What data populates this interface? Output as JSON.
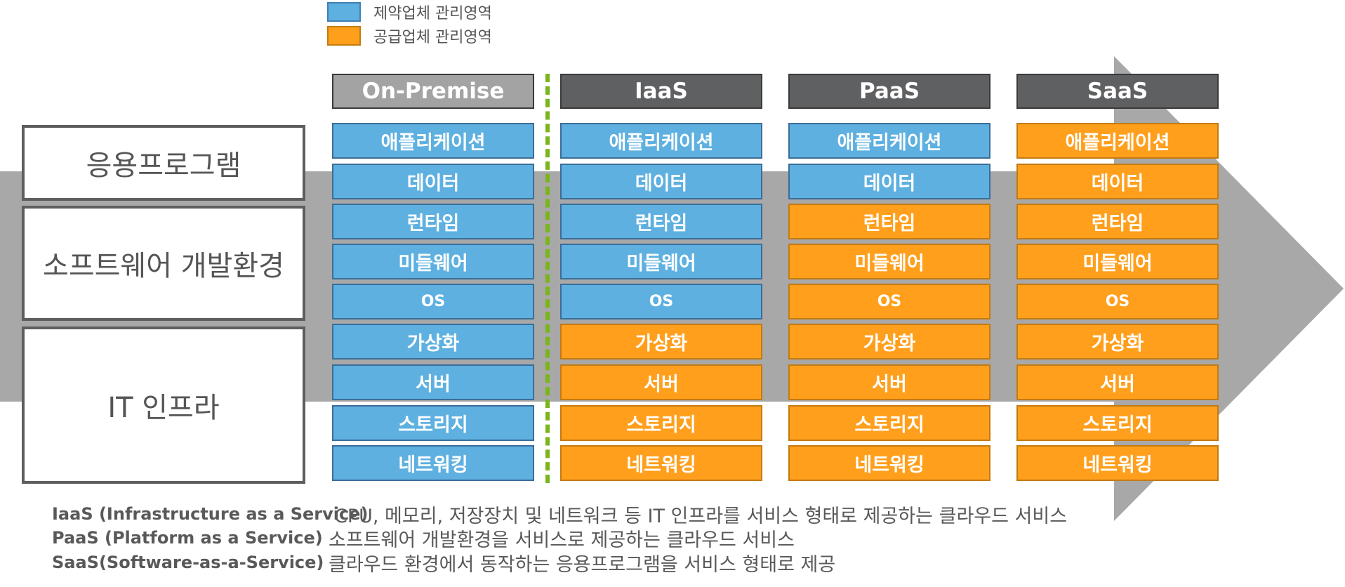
{
  "colors": {
    "client_managed": "#5eb0e0",
    "vendor_managed": "#ff9f1c",
    "header_default": "#5f6062",
    "header_on_premise": "#a3a3a3",
    "arrow": "#a8a8a8",
    "divider": "#7ab51d"
  },
  "legend": [
    {
      "label": "제약업체 관리영역",
      "color": "#5eb0e0"
    },
    {
      "label": "공급업체 관리영역",
      "color": "#ff9f1c"
    }
  ],
  "layer_groups": [
    "응용프로그램",
    "소프트웨어 개발환경",
    "IT 인프라"
  ],
  "columns": [
    {
      "name": "On-Premise",
      "vendor_managed_from_top": 0
    },
    {
      "name": "IaaS",
      "vendor_managed_from_top": 5
    },
    {
      "name": "PaaS",
      "vendor_managed_from_top": 2
    },
    {
      "name": "SaaS",
      "vendor_managed_from_top": 0,
      "all_vendor": true
    }
  ],
  "layers": [
    "애플리케이션",
    "데이터",
    "런타임",
    "미들웨어",
    "OS",
    "가상화",
    "서버",
    "스토리지",
    "네트워킹"
  ],
  "definitions": [
    {
      "term": "IaaS (Infrastructure as a Service)",
      "desc": "CPU, 메모리, 저장장치 및 네트워크 등 IT 인프라를 서비스 형태로 제공하는 클라우드 서비스"
    },
    {
      "term": "PaaS (Platform as a Service)",
      "desc": "소프트웨어 개발환경을 서비스로 제공하는 클라우드 서비스"
    },
    {
      "term": "SaaS(Software-as-a-Service)",
      "desc": "클라우드 환경에서 동작하는 응용프로그램을 서비스 형태로 제공"
    }
  ]
}
